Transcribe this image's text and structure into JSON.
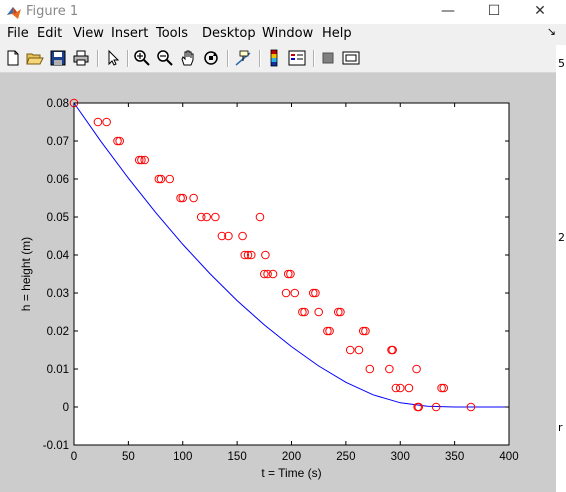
{
  "window": {
    "title": "Figure 1",
    "minimize_glyph": "—",
    "maximize_glyph": "☐",
    "close_glyph": "✕"
  },
  "menu": {
    "items": [
      "File",
      "Edit",
      "View",
      "Insert",
      "Tools",
      "Desktop",
      "Window",
      "Help"
    ],
    "dock_arrow": "↘"
  },
  "toolbar": {
    "icons": [
      "new-figure-icon",
      "open-file-icon",
      "save-figure-icon",
      "print-figure-icon",
      "edit-plot-arrow-icon",
      "zoom-in-icon",
      "zoom-out-icon",
      "pan-hand-icon",
      "rotate-3d-icon",
      "data-cursor-icon",
      "insert-colorbar-icon",
      "insert-legend-icon",
      "hide-plot-tools-icon",
      "show-plot-tools-icon"
    ]
  },
  "right_edge": {
    "chars": [
      "5",
      "2",
      "r"
    ]
  },
  "colors": {
    "line": "#0000ff",
    "markers": "#ff0000",
    "axes_bg": "#ffffff",
    "figure_bg": "#cccccc"
  },
  "chart_data": {
    "type": "scatter",
    "title": "",
    "xlabel": "t = Time (s)",
    "ylabel": "h = height (m)",
    "xlim": [
      0,
      400
    ],
    "ylim": [
      -0.01,
      0.08
    ],
    "xticks": [
      0,
      50,
      100,
      150,
      200,
      250,
      300,
      350,
      400
    ],
    "yticks": [
      -0.01,
      0,
      0.01,
      0.02,
      0.03,
      0.04,
      0.05,
      0.06,
      0.07,
      0.08
    ],
    "xtick_labels": [
      "0",
      "50",
      "100",
      "150",
      "200",
      "250",
      "300",
      "350",
      "400"
    ],
    "ytick_labels": [
      "-0.01",
      "0",
      "0.01",
      "0.02",
      "0.03",
      "0.04",
      "0.05",
      "0.06",
      "0.07",
      "0.08"
    ],
    "grid": false,
    "legend": "none",
    "series": [
      {
        "kind": "scatter",
        "marker": "circle",
        "color": "#ff0000",
        "x": [
          0,
          22,
          30,
          40,
          42,
          60,
          62,
          65,
          78,
          80,
          88,
          98,
          100,
          110,
          117,
          122,
          130,
          136,
          142,
          155,
          157,
          160,
          163,
          171,
          175,
          176,
          178,
          183,
          195,
          197,
          199,
          203,
          210,
          212,
          220,
          222,
          225,
          233,
          235,
          243,
          245,
          254,
          262,
          266,
          268,
          272,
          290,
          292,
          293,
          296,
          300,
          308,
          315,
          316,
          317,
          333,
          338,
          340,
          365
        ],
        "y": [
          0.08,
          0.075,
          0.075,
          0.07,
          0.07,
          0.065,
          0.065,
          0.065,
          0.06,
          0.06,
          0.06,
          0.055,
          0.055,
          0.055,
          0.05,
          0.05,
          0.05,
          0.045,
          0.045,
          0.045,
          0.04,
          0.04,
          0.04,
          0.05,
          0.035,
          0.04,
          0.035,
          0.035,
          0.03,
          0.035,
          0.035,
          0.03,
          0.025,
          0.025,
          0.03,
          0.03,
          0.025,
          0.02,
          0.02,
          0.025,
          0.025,
          0.015,
          0.015,
          0.02,
          0.02,
          0.01,
          0.01,
          0.015,
          0.015,
          0.005,
          0.005,
          0.005,
          0.01,
          0.0,
          0.0,
          0.0,
          0.005,
          0.005,
          0.0
        ]
      },
      {
        "kind": "line",
        "color": "#0000ff",
        "x": [
          0,
          25,
          50,
          75,
          100,
          125,
          150,
          175,
          200,
          225,
          250,
          275,
          300,
          325,
          350,
          365,
          380,
          400
        ],
        "y": [
          0.08,
          0.0698,
          0.0602,
          0.0512,
          0.0428,
          0.0351,
          0.028,
          0.0216,
          0.0159,
          0.0108,
          0.0065,
          0.0032,
          0.0011,
          0.0002,
          0.0,
          0.0,
          0.0,
          0.0
        ]
      }
    ]
  }
}
